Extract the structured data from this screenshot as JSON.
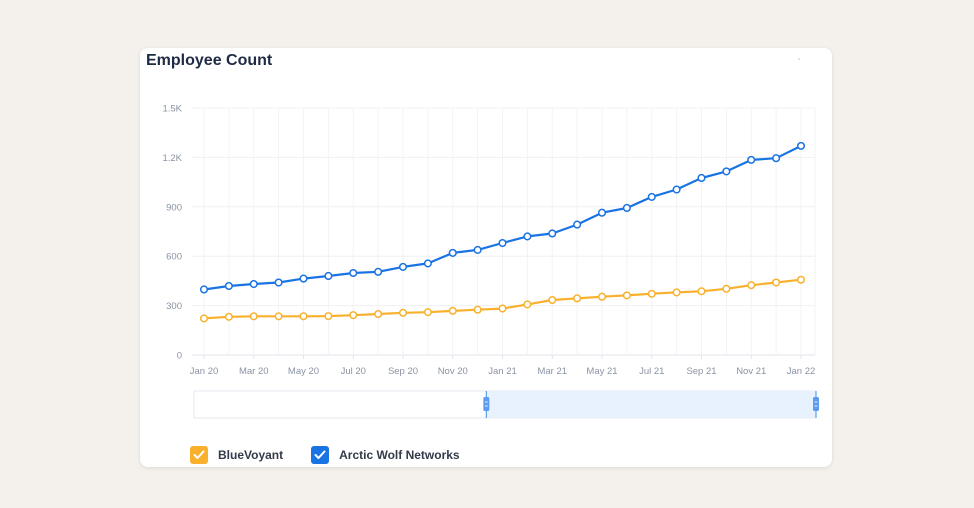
{
  "chart_data": {
    "type": "line",
    "title": "Employee Count",
    "x": [
      "Jan 20",
      "Feb 20",
      "Mar 20",
      "Apr 20",
      "May 20",
      "Jun 20",
      "Jul 20",
      "Aug 20",
      "Sep 20",
      "Oct 20",
      "Nov 20",
      "Dec 20",
      "Jan 21",
      "Feb 21",
      "Mar 21",
      "Apr 21",
      "May 21",
      "Jun 21",
      "Jul 21",
      "Aug 21",
      "Sep 21",
      "Oct 21",
      "Nov 21",
      "Dec 21",
      "Jan 22"
    ],
    "x_tick_labels": [
      "Jan 20",
      "Mar 20",
      "May 20",
      "Jul 20",
      "Sep 20",
      "Nov 20",
      "Jan 21",
      "Mar 21",
      "May 21",
      "Jul 21",
      "Sep 21",
      "Nov 21",
      "Jan 22"
    ],
    "y_ticks": [
      0,
      300,
      600,
      900,
      1200,
      1500
    ],
    "y_tick_labels": [
      "0",
      "300",
      "600",
      "900",
      "1.2K",
      "1.5K"
    ],
    "ylim": [
      0,
      1500
    ],
    "grid": true,
    "legend_position": "bottom-left",
    "series": [
      {
        "name": "BlueVoyant",
        "color": "#f9b12d",
        "values": [
          222,
          232,
          235,
          235,
          235,
          236,
          242,
          249,
          256,
          260,
          268,
          275,
          282,
          307,
          334,
          344,
          354,
          362,
          372,
          380,
          387,
          402,
          424,
          440,
          457
        ]
      },
      {
        "name": "Arctic Wolf Networks",
        "color": "#1a73e3",
        "values": [
          398,
          419,
          431,
          440,
          464,
          480,
          498,
          505,
          535,
          556,
          620,
          638,
          680,
          720,
          738,
          792,
          864,
          893,
          960,
          1005,
          1075,
          1115,
          1185,
          1195,
          1270
        ]
      }
    ]
  },
  "legend": {
    "items": [
      {
        "label": "BlueVoyant",
        "color": "#f9b12d",
        "icon": "check-icon"
      },
      {
        "label": "Arctic Wolf Networks",
        "color": "#1a73e3",
        "icon": "check-icon"
      }
    ]
  },
  "slider": {
    "selected_start": 0.47,
    "selected_end": 1.0,
    "fill_color": "#e8f2fe",
    "handle_color": "#5c9cf0"
  }
}
